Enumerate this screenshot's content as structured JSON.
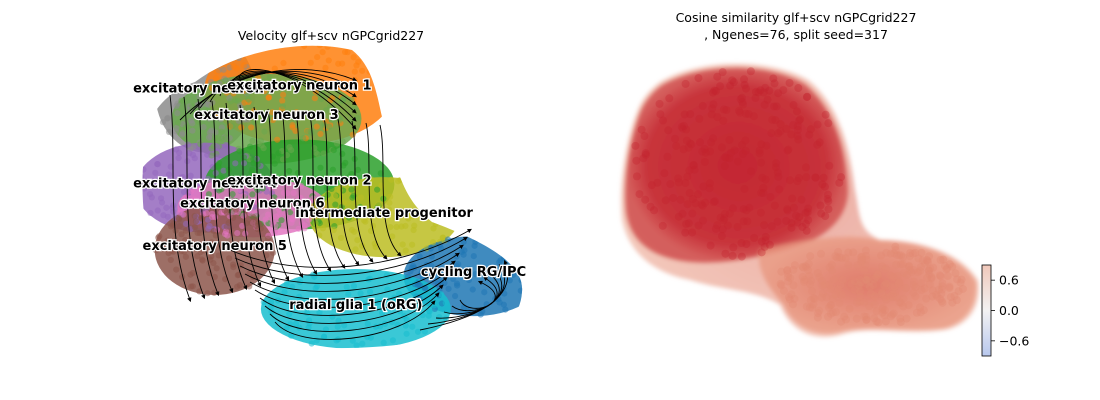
{
  "chart_data": [
    {
      "type": "scatter",
      "subtype": "umap-velocity-stream",
      "title": "Velocity glf+scv nGPCgrid227",
      "xlabel": "",
      "ylabel": "",
      "axes_visible": false,
      "grid": false,
      "cluster_labels": [
        {
          "name": "excitatory neuron 7",
          "color": "#8c8c8c",
          "x": 1.6,
          "y": 7.7
        },
        {
          "name": "excitatory neuron 1",
          "color": "#ff7f0e",
          "x": 3.6,
          "y": 7.8
        },
        {
          "name": "excitatory neuron 3",
          "color": "#6aa84f",
          "x": 2.9,
          "y": 6.9
        },
        {
          "name": "excitatory neuron 4",
          "color": "#9467bd",
          "x": 1.6,
          "y": 4.8
        },
        {
          "name": "excitatory neuron 2",
          "color": "#2ca02c",
          "x": 3.6,
          "y": 4.9
        },
        {
          "name": "excitatory neuron 6",
          "color": "#e377c2",
          "x": 2.6,
          "y": 4.2
        },
        {
          "name": "excitatory neuron 5",
          "color": "#8c564b",
          "x": 1.8,
          "y": 2.9
        },
        {
          "name": "intermediate progenitor",
          "color": "#bcbd22",
          "x": 5.4,
          "y": 3.9
        },
        {
          "name": "cycling RG/IPC",
          "color": "#1f77b4",
          "x": 7.3,
          "y": 2.1
        },
        {
          "name": "radial glia 1 (oRG)",
          "color": "#17becf",
          "x": 4.8,
          "y": 1.1
        }
      ]
    },
    {
      "type": "scatter",
      "subtype": "umap-colored-by-value",
      "title": "Cosine similarity glf+scv nGPCgrid227\n, Ngenes=76, split seed=317",
      "xlabel": "",
      "ylabel": "",
      "axes_visible": false,
      "grid": false,
      "colormap": "coolwarm",
      "colorbar": {
        "ticks": [
          0.6,
          0.0,
          -0.6
        ],
        "tick_labels": [
          "0.6",
          "0.0",
          "−0.6"
        ],
        "range": [
          -0.9,
          0.9
        ]
      },
      "value_regions": [
        {
          "region": "upper body",
          "value": 0.8
        },
        {
          "region": "lower right lobe",
          "value": 0.45
        }
      ]
    }
  ]
}
